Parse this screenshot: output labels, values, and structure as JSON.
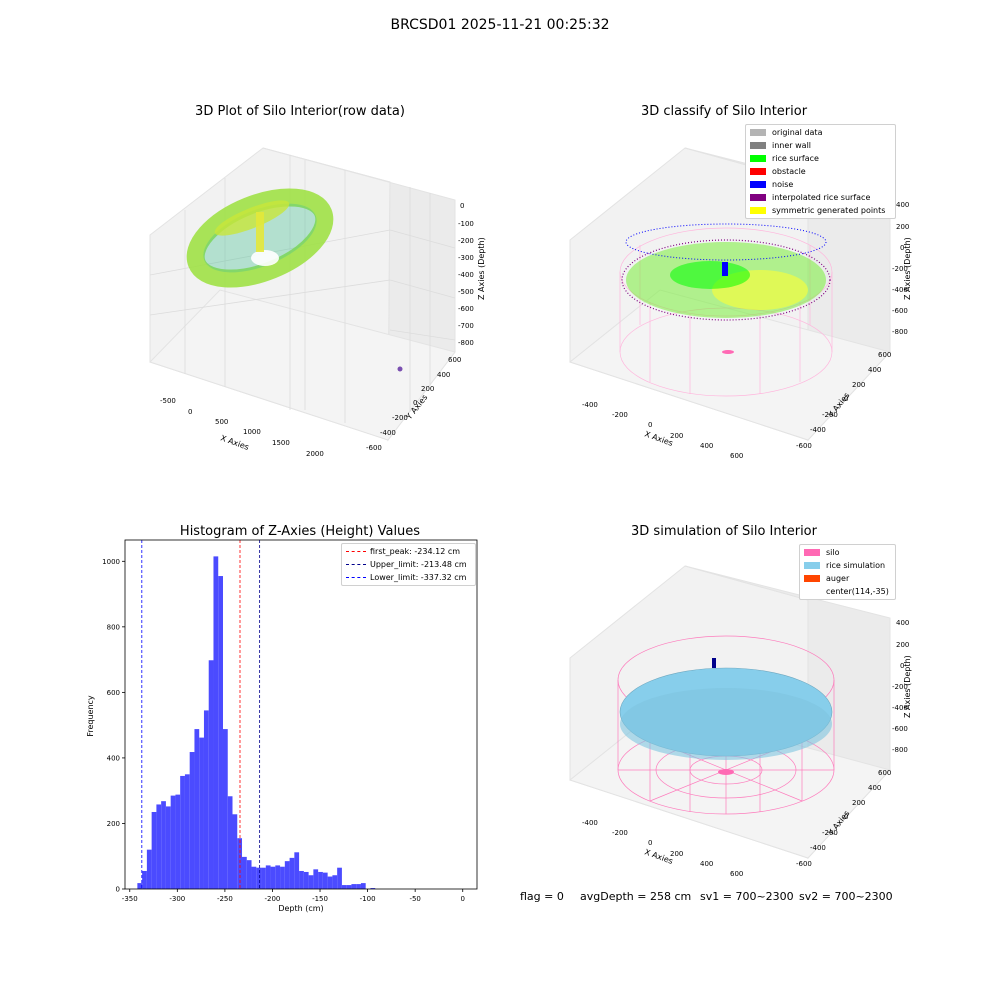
{
  "figure": {
    "title": "BRCSD01 2025-11-21 00:25:32",
    "status_line": {
      "flag": "flag = 0",
      "avg_depth": "avgDepth = 258 cm",
      "sv1": "sv1 = 700~2300",
      "sv2": "sv2 = 700~2300"
    }
  },
  "panels": {
    "raw": {
      "title": "3D Plot of Silo Interior(row data)",
      "xlabel": "X Axies",
      "ylabel": "Y Axies",
      "zlabel": "Z Axies (Depth)",
      "xticks": [
        "-500",
        "0",
        "500",
        "1000",
        "1500",
        "2000"
      ],
      "yticks": [
        "600",
        "400",
        "200",
        "0",
        "-200",
        "-400",
        "-600"
      ],
      "zticks": [
        "0",
        "-100",
        "-200",
        "-300",
        "-400",
        "-500",
        "-600",
        "-700",
        "-800"
      ]
    },
    "classify": {
      "title": "3D classify of Silo Interior",
      "xlabel": "X Axies",
      "ylabel": "Y Axies",
      "zlabel": "Z Axies (Depth)",
      "xticks": [
        "-400",
        "-200",
        "0",
        "200",
        "400",
        "600"
      ],
      "yticks": [
        "600",
        "400",
        "200",
        "0",
        "-200",
        "-400",
        "-600"
      ],
      "zticks": [
        "400",
        "200",
        "0",
        "-200",
        "-400",
        "-600",
        "-800"
      ],
      "legend": [
        {
          "label": "original data",
          "color": "#b4b4b4"
        },
        {
          "label": "inner wall",
          "color": "#808080"
        },
        {
          "label": "rice surface",
          "color": "#00ff00"
        },
        {
          "label": "obstacle",
          "color": "#ff0000"
        },
        {
          "label": "noise",
          "color": "#0000ff"
        },
        {
          "label": "interpolated rice surface",
          "color": "#800080"
        },
        {
          "label": "symmetric generated points",
          "color": "#ffff00"
        }
      ]
    },
    "histogram": {
      "title": "Histogram of Z-Axies (Height) Values",
      "xlabel": "Depth (cm)",
      "ylabel": "Frequency",
      "legend": [
        {
          "label": "first_peak: -234.12 cm",
          "color": "#ff0000"
        },
        {
          "label": "Upper_limit: -213.48 cm",
          "color": "#00008b"
        },
        {
          "label": "Lower_limit: -337.32 cm",
          "color": "#0000ff"
        }
      ]
    },
    "simulation": {
      "title": "3D simulation of Silo Interior",
      "xlabel": "X Axies",
      "ylabel": "Y Axies",
      "zlabel": "Z Axies (Depth)",
      "xticks": [
        "-400",
        "-200",
        "0",
        "200",
        "400",
        "600"
      ],
      "yticks": [
        "600",
        "400",
        "200",
        "0",
        "-200",
        "-400",
        "-600"
      ],
      "zticks": [
        "400",
        "200",
        "0",
        "-200",
        "-400",
        "-600",
        "-800"
      ],
      "legend": [
        {
          "label": "silo",
          "color": "#ff69b4"
        },
        {
          "label": "rice simulation",
          "color": "#87ceeb"
        },
        {
          "label": "auger",
          "color": "#ff4500"
        },
        {
          "label": "center(114,-35)",
          "color": ""
        }
      ]
    }
  },
  "chart_data": {
    "type": "bar",
    "title": "Histogram of Z-Axies (Height) Values",
    "xlabel": "Depth (cm)",
    "ylabel": "Frequency",
    "xlim": [
      -355,
      15
    ],
    "ylim": [
      0,
      1065
    ],
    "xticks": [
      -350,
      -300,
      -250,
      -200,
      -150,
      -100,
      -50,
      0
    ],
    "yticks": [
      0,
      200,
      400,
      600,
      800,
      1000
    ],
    "bar_color": "#4b4bff",
    "bin_width": 5,
    "bins": [
      {
        "x": -342,
        "y": 18
      },
      {
        "x": -337,
        "y": 55
      },
      {
        "x": -332,
        "y": 120
      },
      {
        "x": -327,
        "y": 235
      },
      {
        "x": -322,
        "y": 258
      },
      {
        "x": -317,
        "y": 268
      },
      {
        "x": -312,
        "y": 252
      },
      {
        "x": -307,
        "y": 285
      },
      {
        "x": -302,
        "y": 288
      },
      {
        "x": -297,
        "y": 345
      },
      {
        "x": -292,
        "y": 350
      },
      {
        "x": -287,
        "y": 418
      },
      {
        "x": -282,
        "y": 488
      },
      {
        "x": -277,
        "y": 462
      },
      {
        "x": -272,
        "y": 545
      },
      {
        "x": -267,
        "y": 698
      },
      {
        "x": -262,
        "y": 1015
      },
      {
        "x": -257,
        "y": 955
      },
      {
        "x": -252,
        "y": 488
      },
      {
        "x": -247,
        "y": 283
      },
      {
        "x": -242,
        "y": 228
      },
      {
        "x": -237,
        "y": 155
      },
      {
        "x": -232,
        "y": 98
      },
      {
        "x": -227,
        "y": 88
      },
      {
        "x": -222,
        "y": 68
      },
      {
        "x": -217,
        "y": 65
      },
      {
        "x": -212,
        "y": 65
      },
      {
        "x": -207,
        "y": 72
      },
      {
        "x": -202,
        "y": 68
      },
      {
        "x": -197,
        "y": 72
      },
      {
        "x": -192,
        "y": 68
      },
      {
        "x": -187,
        "y": 85
      },
      {
        "x": -182,
        "y": 95
      },
      {
        "x": -177,
        "y": 112
      },
      {
        "x": -172,
        "y": 55
      },
      {
        "x": -167,
        "y": 52
      },
      {
        "x": -162,
        "y": 42
      },
      {
        "x": -157,
        "y": 60
      },
      {
        "x": -152,
        "y": 52
      },
      {
        "x": -147,
        "y": 50
      },
      {
        "x": -142,
        "y": 38
      },
      {
        "x": -137,
        "y": 42
      },
      {
        "x": -132,
        "y": 65
      },
      {
        "x": -127,
        "y": 12
      },
      {
        "x": -122,
        "y": 12
      },
      {
        "x": -117,
        "y": 15
      },
      {
        "x": -112,
        "y": 15
      },
      {
        "x": -107,
        "y": 18
      },
      {
        "x": -102,
        "y": 0
      },
      {
        "x": -97,
        "y": 3
      },
      {
        "x": -92,
        "y": 0
      }
    ],
    "vlines": [
      {
        "label": "first_peak: -234.12 cm",
        "x": -234.12,
        "color": "#ff0000"
      },
      {
        "label": "Upper_limit: -213.48 cm",
        "x": -213.48,
        "color": "#00008b"
      },
      {
        "label": "Lower_limit: -337.32 cm",
        "x": -337.32,
        "color": "#0000ff"
      }
    ]
  }
}
